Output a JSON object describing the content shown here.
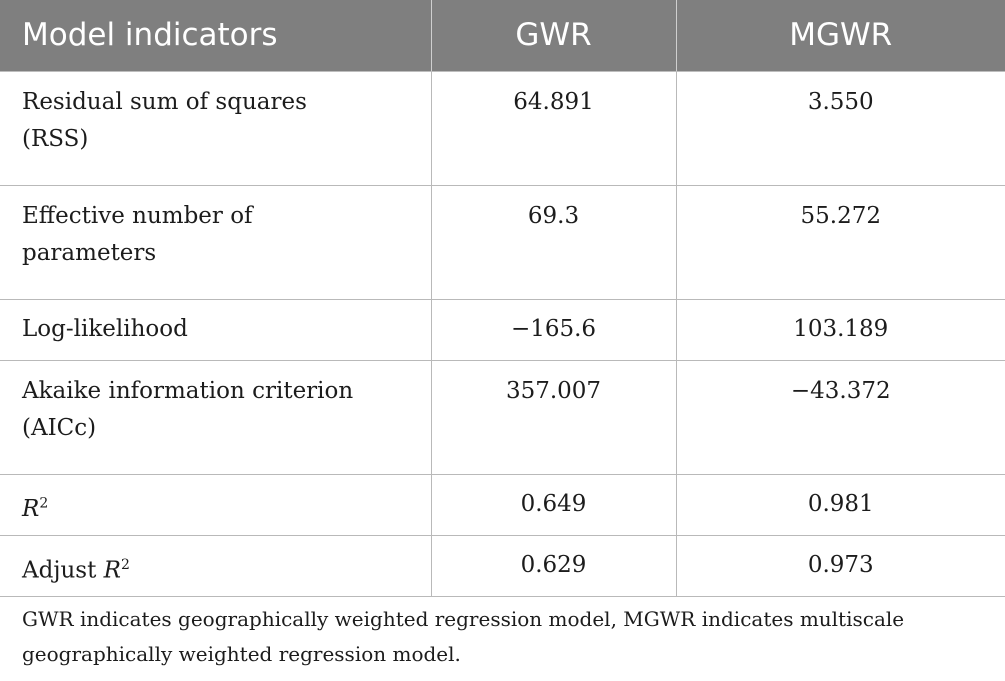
{
  "table": {
    "headers": [
      "Model indicators",
      "GWR",
      "MGWR"
    ],
    "rows": [
      {
        "indicator_lines": [
          "Residual sum of squares",
          "(RSS)"
        ],
        "gwr": "64.891",
        "mgwr": "3.550"
      },
      {
        "indicator_lines": [
          "Effective number of",
          "parameters"
        ],
        "gwr": "69.3",
        "mgwr": "55.272"
      },
      {
        "indicator_lines": [
          "Log-likelihood"
        ],
        "gwr": "−165.6",
        "mgwr": "103.189"
      },
      {
        "indicator_lines": [
          "Akaike information criterion",
          "(AICc)"
        ],
        "gwr": "357.007",
        "mgwr": "−43.372"
      },
      {
        "indicator_lines": [
          "R2"
        ],
        "gwr": "0.649",
        "mgwr": "0.981"
      },
      {
        "indicator_lines": [
          "Adjust R2"
        ],
        "gwr": "0.629",
        "mgwr": "0.973"
      }
    ]
  },
  "footnote": {
    "lines": [
      "GWR indicates geographically weighted regression model, MGWR indicates multiscale",
      "geographically weighted regression model."
    ]
  }
}
